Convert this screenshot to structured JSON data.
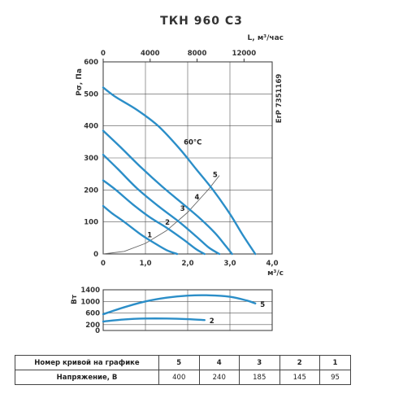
{
  "chart_data": [
    {
      "type": "line",
      "title": "ТКН 960 С3",
      "xlabel": "м³/с",
      "ylabel": "Рσ, Па",
      "x2label": "L, м³/час",
      "side_label": "ErP 7351169",
      "temp_label": "60°С",
      "xlim": [
        0,
        4.0
      ],
      "ylim": [
        0,
        600
      ],
      "xticks": [
        "0",
        "1,0",
        "2,0",
        "3,0",
        "4,0"
      ],
      "yticks": [
        "0",
        "100",
        "200",
        "300",
        "400",
        "500",
        "600"
      ],
      "x2lim": [
        0,
        14400
      ],
      "x2ticks": [
        "0",
        "4000",
        "8000",
        "12000"
      ],
      "grid": true,
      "series": [
        {
          "name": "1",
          "x": [
            0,
            0.2,
            0.5,
            0.9,
            1.2,
            1.5,
            1.75
          ],
          "y": [
            150,
            128,
            100,
            60,
            35,
            12,
            0
          ]
        },
        {
          "name": "2",
          "x": [
            0,
            0.3,
            0.7,
            1.1,
            1.5,
            1.9,
            2.2,
            2.4
          ],
          "y": [
            230,
            200,
            155,
            115,
            82,
            45,
            15,
            0
          ]
        },
        {
          "name": "3",
          "x": [
            0,
            0.35,
            0.8,
            1.3,
            1.8,
            2.2,
            2.5,
            2.75
          ],
          "y": [
            310,
            265,
            205,
            150,
            100,
            55,
            20,
            0
          ]
        },
        {
          "name": "4",
          "x": [
            0,
            0.4,
            0.9,
            1.4,
            1.9,
            2.3,
            2.65,
            2.9,
            3.05
          ],
          "y": [
            385,
            335,
            270,
            210,
            155,
            110,
            65,
            25,
            0
          ]
        },
        {
          "name": "5",
          "x": [
            0,
            0.3,
            0.8,
            1.3,
            1.8,
            2.2,
            2.6,
            3.0,
            3.3,
            3.6
          ],
          "y": [
            520,
            490,
            450,
            400,
            330,
            265,
            200,
            125,
            60,
            0
          ]
        }
      ],
      "system_curve": {
        "x": [
          0,
          0.5,
          1.0,
          1.5,
          2.0,
          2.5,
          2.75
        ],
        "y": [
          0,
          8,
          33,
          73,
          130,
          203,
          245
        ]
      },
      "curve_labels": [
        {
          "text": "1",
          "x": 1.1,
          "y": 52
        },
        {
          "text": "2",
          "x": 1.52,
          "y": 92
        },
        {
          "text": "3",
          "x": 1.88,
          "y": 135
        },
        {
          "text": "4",
          "x": 2.22,
          "y": 170
        },
        {
          "text": "5",
          "x": 2.65,
          "y": 240
        }
      ]
    },
    {
      "type": "line",
      "ylabel": "Вт",
      "ylim": [
        0,
        1400
      ],
      "yticks": [
        "0",
        "200",
        "600",
        "1000",
        "1400"
      ],
      "xlim": [
        0,
        4.0
      ],
      "grid": true,
      "series": [
        {
          "name": "5",
          "x": [
            0,
            0.5,
            1.0,
            1.5,
            2.0,
            2.5,
            3.0,
            3.4,
            3.6
          ],
          "y": [
            560,
            800,
            1000,
            1130,
            1200,
            1210,
            1160,
            1030,
            930
          ]
        },
        {
          "name": "2",
          "x": [
            0,
            0.5,
            1.0,
            1.5,
            2.0,
            2.4
          ],
          "y": [
            310,
            380,
            410,
            410,
            390,
            360
          ]
        }
      ]
    }
  ],
  "table": {
    "rows": [
      {
        "header": "Номер кривой на графике",
        "cells": [
          "5",
          "4",
          "3",
          "2",
          "1"
        ]
      },
      {
        "header": "Напряжение, В",
        "cells": [
          "400",
          "240",
          "185",
          "145",
          "95"
        ]
      }
    ]
  },
  "colors": {
    "curve": "#2b8ec8",
    "grid": "#555555",
    "system": "#666666"
  }
}
